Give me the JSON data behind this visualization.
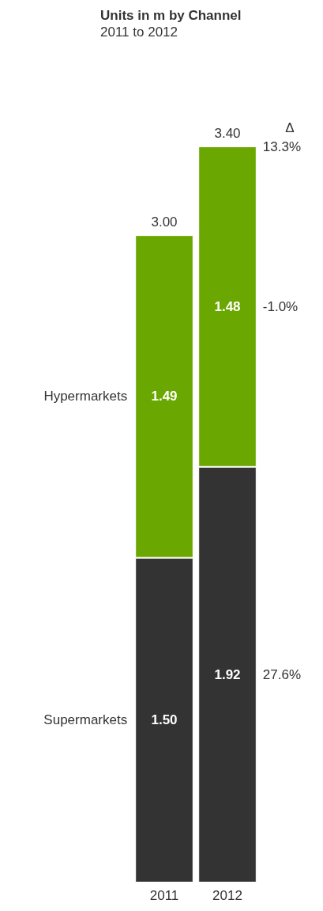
{
  "chart_data": {
    "type": "bar",
    "title": "Units in m by Channel",
    "subtitle": "2011 to 2012",
    "categories": [
      "2011",
      "2012"
    ],
    "stacked": true,
    "legend": false,
    "series": [
      {
        "name": "Supermarkets",
        "color": "#333333",
        "values": [
          1.5,
          1.92
        ],
        "value_labels": [
          "1.50",
          "1.92"
        ]
      },
      {
        "name": "Hypermarkets",
        "color": "#6aa700",
        "values": [
          1.49,
          1.48
        ],
        "value_labels": [
          "1.49",
          "1.48"
        ]
      }
    ],
    "totals": [
      "3.00",
      "3.40"
    ],
    "annotations": [
      "Δ",
      {
        "text": "13.3%",
        "x": "2012",
        "y": 3.4
      },
      "-1.0%",
      "27.6%"
    ]
  }
}
